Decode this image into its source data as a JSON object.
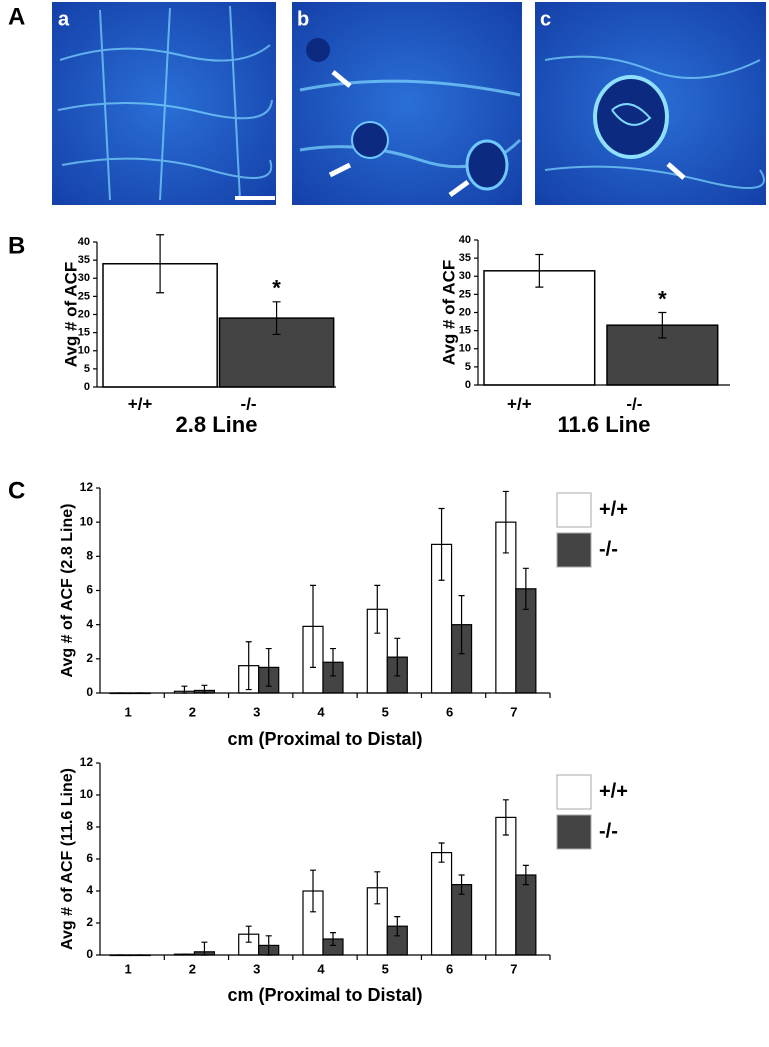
{
  "panel_labels": [
    "A",
    "B",
    "C"
  ],
  "images": [
    {
      "label": "a"
    },
    {
      "label": "b"
    },
    {
      "label": "c"
    }
  ],
  "chart_data": [
    {
      "type": "bar",
      "categories": [
        "+/+",
        "-/-"
      ],
      "values": [
        34,
        19
      ],
      "errors": [
        8,
        4.5
      ],
      "colors": [
        "#ffffff",
        "#444444"
      ],
      "ylabel": "Avg # of ACF",
      "xlabel": "2.8 Line",
      "annotation": "*",
      "ylim": [
        0,
        40
      ],
      "yticks": [
        0,
        5,
        10,
        15,
        20,
        25,
        30,
        35,
        40
      ]
    },
    {
      "type": "bar",
      "categories": [
        "+/+",
        "-/-"
      ],
      "values": [
        31.5,
        16.5
      ],
      "errors": [
        4.5,
        3.5
      ],
      "colors": [
        "#ffffff",
        "#444444"
      ],
      "ylabel": "Avg # of ACF",
      "xlabel": "11.6 Line",
      "annotation": "*",
      "ylim": [
        0,
        40
      ],
      "yticks": [
        0,
        5,
        10,
        15,
        20,
        25,
        30,
        35,
        40
      ]
    },
    {
      "type": "grouped_bar",
      "categories": [
        "1",
        "2",
        "3",
        "4",
        "5",
        "6",
        "7"
      ],
      "series": [
        {
          "name": "+/+",
          "color": "#ffffff",
          "values": [
            0,
            0.1,
            1.6,
            3.9,
            4.9,
            8.7,
            10
          ],
          "errors": [
            0,
            0.3,
            1.4,
            2.4,
            1.4,
            2.1,
            1.8
          ]
        },
        {
          "name": "-/-",
          "color": "#444444",
          "values": [
            0,
            0.15,
            1.5,
            1.8,
            2.1,
            4.0,
            6.1
          ],
          "errors": [
            0,
            0.3,
            1.1,
            0.8,
            1.1,
            1.7,
            1.2
          ]
        }
      ],
      "ylabel": "Avg # of ACF (2.8 Line)",
      "xlabel": "cm (Proximal to Distal)",
      "legend": "right",
      "ylim": [
        0,
        12
      ],
      "yticks": [
        0,
        2,
        4,
        6,
        8,
        10,
        12
      ]
    },
    {
      "type": "grouped_bar",
      "categories": [
        "1",
        "2",
        "3",
        "4",
        "5",
        "6",
        "7"
      ],
      "series": [
        {
          "name": "+/+",
          "color": "#ffffff",
          "values": [
            0,
            0.05,
            1.3,
            4.0,
            4.2,
            6.4,
            8.6
          ],
          "errors": [
            0,
            0,
            0.5,
            1.3,
            1.0,
            0.6,
            1.1
          ]
        },
        {
          "name": "-/-",
          "color": "#444444",
          "values": [
            0,
            0.2,
            0.6,
            1.0,
            1.8,
            4.4,
            5.0
          ],
          "errors": [
            0,
            0.6,
            0.6,
            0.4,
            0.6,
            0.6,
            0.6
          ]
        }
      ],
      "ylabel": "Avg # of ACF (11.6 Line)",
      "xlabel": "cm (Proximal to Distal)",
      "legend": "right",
      "ylim": [
        0,
        12
      ],
      "yticks": [
        0,
        2,
        4,
        6,
        8,
        10,
        12
      ]
    }
  ]
}
